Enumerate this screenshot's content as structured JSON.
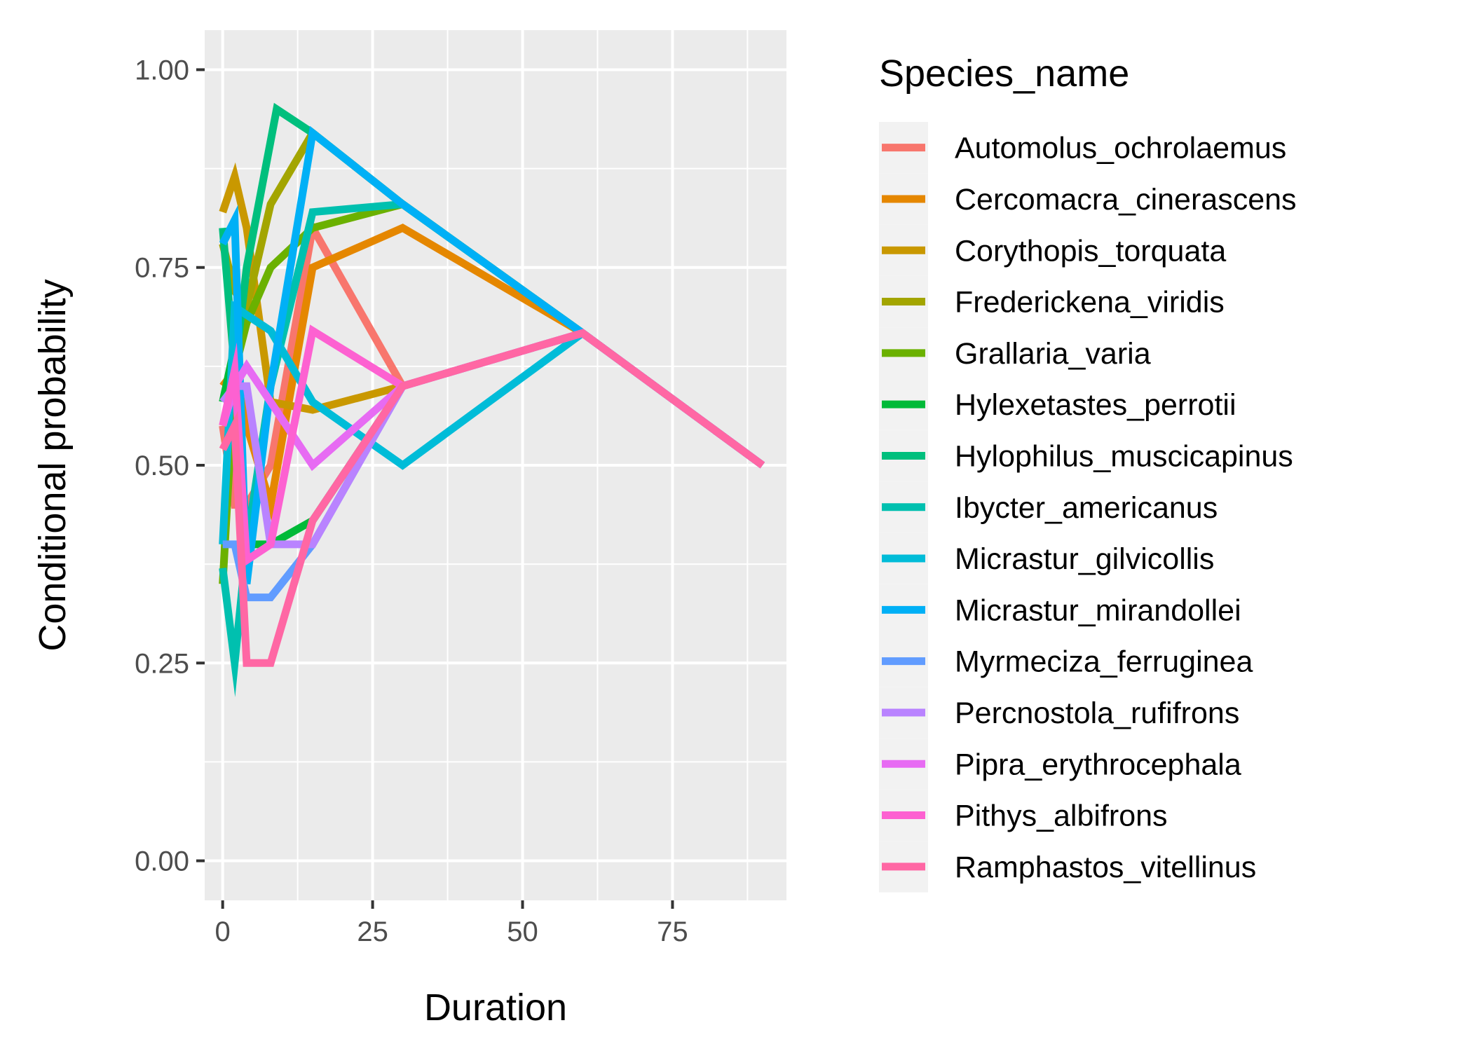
{
  "chart_data": {
    "type": "line",
    "title": "",
    "xlabel": "Duration",
    "ylabel": "Conditional probability",
    "xlim": [
      -3,
      94
    ],
    "ylim": [
      -0.05,
      1.05
    ],
    "x_ticks": [
      0,
      25,
      50,
      75
    ],
    "y_ticks": [
      0,
      0.25,
      0.5,
      0.75,
      1.0
    ],
    "x_tick_labels": [
      "0",
      "25",
      "50",
      "75"
    ],
    "y_tick_labels": [
      "0.00",
      "0.25",
      "0.50",
      "0.75",
      "1.00"
    ],
    "grid": true,
    "legend": {
      "title": "Species_name",
      "position": "right"
    },
    "series": [
      {
        "name": "Automolus_ochrolaemus",
        "color": "#F8766D",
        "x": [
          0,
          2,
          4,
          8,
          15,
          30,
          60,
          90
        ],
        "y": [
          0.55,
          0.45,
          0.45,
          0.5,
          0.8,
          0.6,
          0.667,
          0.5
        ]
      },
      {
        "name": "Cercomacra_cinerascens",
        "color": "#E58700",
        "x": [
          0,
          2,
          4,
          8,
          15,
          30,
          60,
          90
        ],
        "y": [
          0.6,
          0.62,
          0.55,
          0.45,
          0.75,
          0.8,
          0.667,
          0.5
        ]
      },
      {
        "name": "Corythopis_torquata",
        "color": "#C99800",
        "x": [
          0,
          2,
          4,
          8,
          15,
          30,
          60,
          90
        ],
        "y": [
          0.82,
          0.865,
          0.8,
          0.58,
          0.57,
          0.6,
          0.667,
          0.5
        ]
      },
      {
        "name": "Frederickena_viridis",
        "color": "#A3A500",
        "x": [
          0,
          2,
          4,
          8,
          15,
          30,
          60,
          90
        ],
        "y": [
          0.78,
          0.72,
          0.7,
          0.83,
          0.92,
          0.83,
          0.667,
          0.5
        ]
      },
      {
        "name": "Grallaria_varia",
        "color": "#6BB100",
        "x": [
          0,
          2,
          4,
          8,
          15,
          30,
          60,
          90
        ],
        "y": [
          0.35,
          0.62,
          0.68,
          0.75,
          0.8,
          0.83,
          0.667,
          0.5
        ]
      },
      {
        "name": "Hylexetastes_perrotii",
        "color": "#00BA38",
        "x": [
          0,
          2,
          4,
          8,
          15,
          30,
          60,
          90
        ],
        "y": [
          0.58,
          0.65,
          0.4,
          0.4,
          0.43,
          0.6,
          0.667,
          0.5
        ]
      },
      {
        "name": "Hylophilus_muscicapinus",
        "color": "#00BF7D",
        "x": [
          0,
          2,
          4,
          9,
          15,
          30,
          60,
          90
        ],
        "y": [
          0.8,
          0.62,
          0.75,
          0.95,
          0.92,
          0.83,
          0.667,
          0.5
        ]
      },
      {
        "name": "Ibycter_americanus",
        "color": "#00C0AF",
        "x": [
          0,
          2,
          4,
          8,
          15,
          30,
          60,
          90
        ],
        "y": [
          0.37,
          0.25,
          0.4,
          0.6,
          0.82,
          0.83,
          0.667,
          0.5
        ]
      },
      {
        "name": "Micrastur_gilvicollis",
        "color": "#00BCD8",
        "x": [
          0,
          2,
          4,
          8,
          15,
          30,
          60,
          90
        ],
        "y": [
          0.4,
          0.7,
          0.69,
          0.67,
          0.58,
          0.5,
          0.667,
          0.5
        ]
      },
      {
        "name": "Micrastur_mirandollei",
        "color": "#00B0F6",
        "x": [
          0,
          2,
          4,
          8,
          15,
          30,
          60,
          90
        ],
        "y": [
          0.78,
          0.81,
          0.35,
          0.6,
          0.92,
          0.83,
          0.667,
          0.5
        ]
      },
      {
        "name": "Myrmeciza_ferruginea",
        "color": "#619CFF",
        "x": [
          0,
          2,
          4,
          8,
          15,
          30,
          60,
          90
        ],
        "y": [
          0.4,
          0.4,
          0.333,
          0.333,
          0.4,
          0.6,
          0.667,
          0.5
        ]
      },
      {
        "name": "Percnostola_rufifrons",
        "color": "#B983FF",
        "x": [
          0,
          2,
          4,
          8,
          15,
          30,
          60,
          90
        ],
        "y": [
          0.58,
          0.6,
          0.6,
          0.4,
          0.4,
          0.6,
          0.667,
          0.5
        ]
      },
      {
        "name": "Pipra_erythrocephala",
        "color": "#E76BF3",
        "x": [
          0,
          2,
          4,
          8,
          15,
          30,
          60,
          90
        ],
        "y": [
          0.55,
          0.6,
          0.625,
          0.58,
          0.5,
          0.6,
          0.667,
          0.5
        ]
      },
      {
        "name": "Pithys_albifrons",
        "color": "#FD61D1",
        "x": [
          0,
          2,
          4,
          8,
          15,
          30,
          60,
          90
        ],
        "y": [
          0.55,
          0.62,
          0.38,
          0.4,
          0.67,
          0.6,
          0.667,
          0.5
        ]
      },
      {
        "name": "Ramphastos_vitellinus",
        "color": "#FF67A4",
        "x": [
          0,
          2,
          4,
          8,
          15,
          30,
          60,
          90
        ],
        "y": [
          0.52,
          0.55,
          0.25,
          0.25,
          0.43,
          0.6,
          0.667,
          0.5
        ]
      }
    ]
  }
}
